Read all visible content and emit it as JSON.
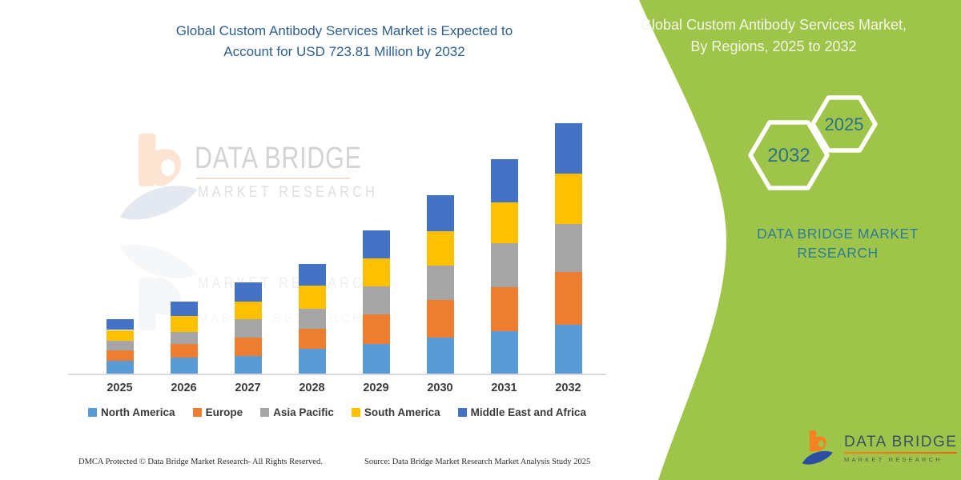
{
  "chart": {
    "title": "Global Custom Antibody Services Market is Expected to Account for USD 723.81 Million by 2032",
    "title_color": "#2D5F8E",
    "watermark": {
      "line1": "DATA BRIDGE",
      "line2": "MARKET RESEARCH"
    },
    "footer_left": "DMCA Protected © Data Bridge Market Research-  All Rights Reserved.",
    "footer_right": "Source: Data Bridge Market Research  Market Analysis Study 2025"
  },
  "chart_data": {
    "type": "bar",
    "stacked": true,
    "unit": "USD Million",
    "categories": [
      "2025",
      "2026",
      "2027",
      "2028",
      "2029",
      "2030",
      "2031",
      "2032"
    ],
    "series": [
      {
        "name": "North America",
        "color": "#5B9BD5",
        "values": [
          36,
          46,
          52,
          72,
          85,
          104,
          122,
          141
        ]
      },
      {
        "name": "Europe",
        "color": "#ED7D31",
        "values": [
          31,
          40,
          52,
          58,
          85,
          108,
          127,
          152
        ]
      },
      {
        "name": "Asia Pacific",
        "color": "#A5A5A5",
        "values": [
          28,
          35,
          53,
          58,
          83,
          100,
          127,
          139
        ]
      },
      {
        "name": "South America",
        "color": "#FFC000",
        "values": [
          31,
          46,
          52,
          66,
          80,
          100,
          119,
          147
        ]
      },
      {
        "name": "Middle East and Africa",
        "color": "#4472C4",
        "values": [
          31,
          42,
          54,
          63,
          82,
          104,
          124,
          144.81
        ]
      }
    ],
    "totals": [
      157,
      209,
      263,
      317,
      415,
      516,
      619,
      723.81
    ],
    "highlight_total_2032": 723.81,
    "xlabel": "",
    "ylabel": "",
    "grid": false,
    "legend_position": "bottom",
    "axis_line_color": "#d9d9d9"
  },
  "side_panel": {
    "background_color": "#9EC54A",
    "heading": "Global Custom Antibody Services Market, By Regions, 2025 to 2032",
    "hexagons": [
      {
        "label": "2032"
      },
      {
        "label": "2025"
      }
    ],
    "brand_text": "DATA BRIDGE MARKET RESEARCH",
    "brand_color": "#2E7C96",
    "logo": {
      "name": "DATA BRIDGE",
      "subtitle": "MARKET RESEARCH"
    }
  }
}
